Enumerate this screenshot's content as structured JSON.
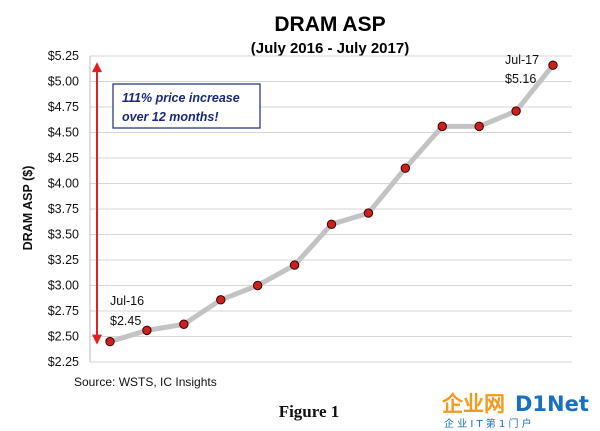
{
  "chart_data": {
    "type": "line",
    "title": "DRAM ASP",
    "subtitle": "(July 2016 - July 2017)",
    "ylabel": "DRAM ASP ($)",
    "ylim": [
      2.25,
      5.25
    ],
    "yticks": [
      2.25,
      2.5,
      2.75,
      3.0,
      3.25,
      3.5,
      3.75,
      4.0,
      4.25,
      4.5,
      4.75,
      5.0,
      5.25
    ],
    "ytick_labels": [
      "$2.25",
      "$2.50",
      "$2.75",
      "$3.00",
      "$3.25",
      "$3.50",
      "$3.75",
      "$4.00",
      "$4.25",
      "$4.50",
      "$4.75",
      "$5.00",
      "$5.25"
    ],
    "grid": "horizontal",
    "series": [
      {
        "values": [
          2.45,
          2.56,
          2.62,
          2.86,
          3.0,
          3.2,
          3.6,
          3.71,
          4.15,
          4.56,
          4.56,
          4.71,
          5.16
        ]
      }
    ],
    "line_color": "#c3c3c3",
    "marker_color": "#cc1f1f",
    "annotations": {
      "start_label": "Jul-16",
      "start_value": "$2.45",
      "end_label": "Jul-17",
      "end_value": "$5.16",
      "callout_line1": "111% price increase",
      "callout_line2": "over 12 months!",
      "arrow_color": "#e02020",
      "callout_border": "#1a2a7a"
    },
    "source": "Source:  WSTS, IC Insights"
  },
  "caption": "Figure 1",
  "watermark": {
    "brand_a": "企业网",
    "brand_b": "D1Net",
    "sub": "企 业 I T 第 1 门 户"
  }
}
